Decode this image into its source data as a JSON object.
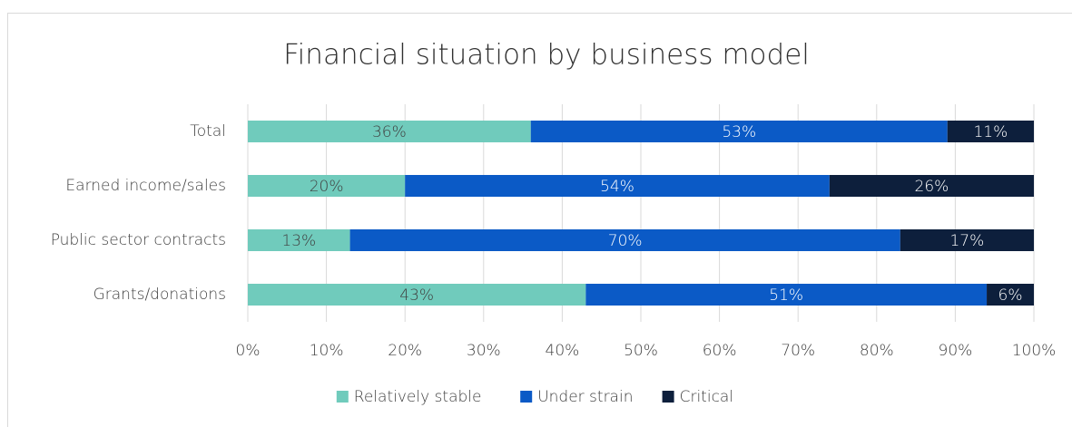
{
  "chart_data": {
    "type": "stacked_bar_horizontal",
    "title": "Financial situation by business model",
    "categories": [
      "Total",
      "Earned income/sales",
      "Public sector contracts",
      "Grants/donations"
    ],
    "series": [
      {
        "name": "Relatively stable",
        "color": "#70cbbc",
        "values": [
          36,
          20,
          13,
          43
        ],
        "value_labels": [
          "36%",
          "20%",
          "13%",
          "43%"
        ]
      },
      {
        "name": "Under strain",
        "color": "#0b5ac6",
        "values": [
          53,
          54,
          70,
          51
        ],
        "value_labels": [
          "53%",
          "54%",
          "70%",
          "51%"
        ]
      },
      {
        "name": "Critical",
        "color": "#0d1f3c",
        "values": [
          11,
          26,
          17,
          6
        ],
        "value_labels": [
          "11%",
          "26%",
          "17%",
          "6%"
        ]
      }
    ],
    "xlim": [
      0,
      100
    ],
    "xticks": [
      {
        "value": 0,
        "label": "0%"
      },
      {
        "value": 10,
        "label": "10%"
      },
      {
        "value": 20,
        "label": "20%"
      },
      {
        "value": 30,
        "label": "30%"
      },
      {
        "value": 40,
        "label": "40%"
      },
      {
        "value": 50,
        "label": "50%"
      },
      {
        "value": 60,
        "label": "60%"
      },
      {
        "value": 70,
        "label": "70%"
      },
      {
        "value": 80,
        "label": "80%"
      },
      {
        "value": 90,
        "label": "90%"
      },
      {
        "value": 100,
        "label": "100%"
      }
    ],
    "grid": true,
    "legend": "bottom"
  }
}
